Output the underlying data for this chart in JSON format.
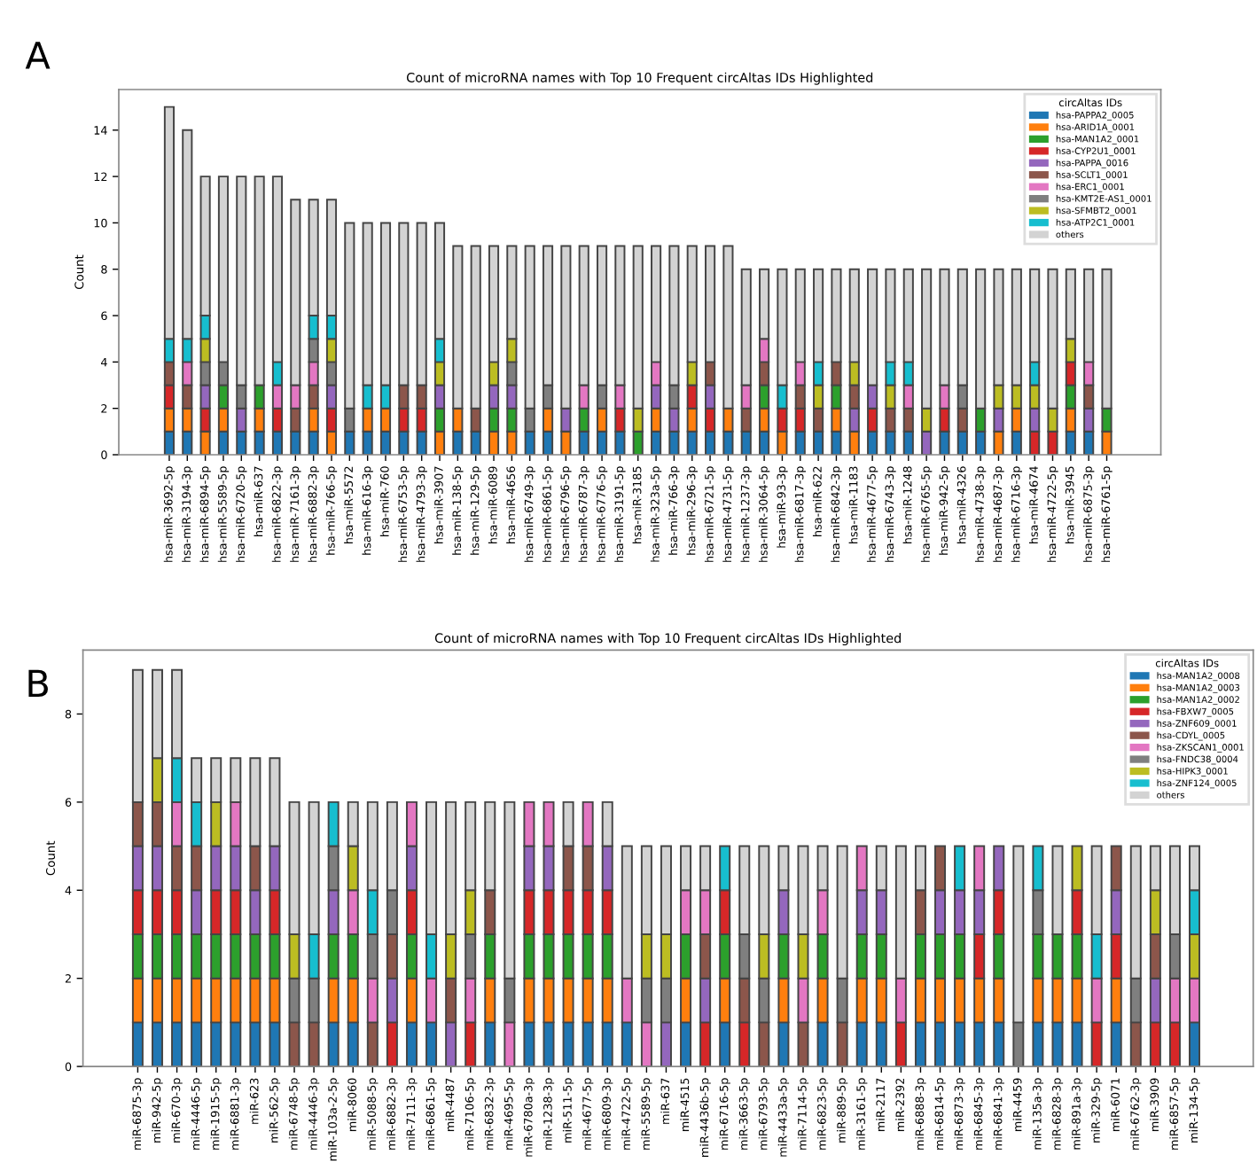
{
  "chart_data": [
    {
      "type": "bar",
      "stacked": true,
      "title": "Count of microRNA names with Top 10 Frequent circAltas IDs Highlighted",
      "ylabel": "Count",
      "legend_title": "circAltas IDs",
      "legend": "top right",
      "annotations": [
        "A"
      ],
      "categories": [
        "hsa-miR-3692-5p",
        "hsa-miR-3194-3p",
        "hsa-miR-6894-5p",
        "hsa-miR-5589-5p",
        "hsa-miR-6720-5p",
        "hsa-miR-637",
        "hsa-miR-6822-3p",
        "hsa-miR-7161-3p",
        "hsa-miR-6882-3p",
        "hsa-miR-766-5p",
        "hsa-miR-5572",
        "hsa-miR-616-3p",
        "hsa-miR-760",
        "hsa-miR-6753-5p",
        "hsa-miR-4793-3p",
        "hsa-miR-3907",
        "hsa-miR-138-5p",
        "hsa-miR-129-5p",
        "hsa-miR-6089",
        "hsa-miR-4656",
        "hsa-miR-6749-3p",
        "hsa-miR-6861-5p",
        "hsa-miR-6796-5p",
        "hsa-miR-6787-3p",
        "hsa-miR-6776-5p",
        "hsa-miR-3191-5p",
        "hsa-miR-3185",
        "hsa-miR-323a-5p",
        "hsa-miR-766-3p",
        "hsa-miR-296-3p",
        "hsa-miR-6721-5p",
        "hsa-miR-4731-5p",
        "hsa-miR-1237-3p",
        "hsa-miR-3064-5p",
        "hsa-miR-93-3p",
        "hsa-miR-6817-3p",
        "hsa-miR-622",
        "hsa-miR-6842-3p",
        "hsa-miR-1183",
        "hsa-miR-4677-5p",
        "hsa-miR-6743-3p",
        "hsa-miR-1248",
        "hsa-miR-6765-5p",
        "hsa-miR-942-5p",
        "hsa-miR-4326",
        "hsa-miR-4738-3p",
        "hsa-miR-4687-3p",
        "hsa-miR-6716-3p",
        "hsa-miR-4674",
        "hsa-miR-4722-5p",
        "hsa-miR-3945",
        "hsa-miR-6875-3p",
        "hsa-miR-6761-5p"
      ],
      "series": [
        {
          "name": "hsa-PAPPA2_0005",
          "color": "#1f77b4",
          "values": [
            1,
            1,
            0,
            1,
            1,
            1,
            1,
            1,
            1,
            0,
            1,
            1,
            1,
            1,
            1,
            0,
            1,
            1,
            0,
            0,
            1,
            1,
            0,
            1,
            1,
            1,
            0,
            1,
            1,
            1,
            1,
            1,
            1,
            1,
            0,
            1,
            1,
            1,
            0,
            1,
            1,
            1,
            0,
            1,
            1,
            1,
            0,
            1,
            0,
            0,
            1,
            1,
            0
          ]
        },
        {
          "name": "hsa-ARID1A_0001",
          "color": "#ff7f0e",
          "values": [
            1,
            1,
            1,
            1,
            0,
            1,
            0,
            0,
            1,
            1,
            0,
            1,
            1,
            0,
            0,
            1,
            1,
            0,
            1,
            1,
            0,
            1,
            1,
            0,
            1,
            0,
            0,
            1,
            0,
            1,
            0,
            1,
            0,
            1,
            1,
            0,
            0,
            1,
            1,
            0,
            0,
            0,
            0,
            0,
            0,
            0,
            1,
            1,
            0,
            0,
            1,
            0,
            1
          ]
        },
        {
          "name": "hsa-MAN1A2_0001",
          "color": "#2ca02c",
          "values": [
            0,
            0,
            0,
            1,
            0,
            1,
            0,
            0,
            0,
            0,
            0,
            0,
            0,
            0,
            0,
            1,
            0,
            0,
            1,
            1,
            0,
            0,
            0,
            1,
            0,
            0,
            1,
            0,
            0,
            0,
            0,
            0,
            0,
            1,
            0,
            0,
            0,
            1,
            0,
            0,
            0,
            0,
            0,
            0,
            0,
            1,
            0,
            0,
            0,
            0,
            1,
            0,
            1
          ]
        },
        {
          "name": "hsa-CYP2U1_0001",
          "color": "#d62728",
          "values": [
            1,
            0,
            1,
            0,
            0,
            0,
            1,
            0,
            0,
            1,
            0,
            0,
            0,
            1,
            1,
            0,
            0,
            0,
            0,
            0,
            0,
            0,
            0,
            0,
            0,
            1,
            0,
            0,
            0,
            1,
            1,
            0,
            0,
            0,
            1,
            1,
            0,
            0,
            0,
            1,
            0,
            0,
            0,
            1,
            0,
            0,
            0,
            0,
            1,
            1,
            1,
            0,
            0
          ]
        },
        {
          "name": "hsa-PAPPA_0016",
          "color": "#9467bd",
          "values": [
            0,
            0,
            1,
            0,
            1,
            0,
            0,
            0,
            0,
            1,
            0,
            0,
            0,
            0,
            0,
            1,
            0,
            0,
            1,
            1,
            0,
            0,
            1,
            0,
            0,
            0,
            0,
            1,
            1,
            0,
            1,
            0,
            0,
            0,
            0,
            0,
            0,
            0,
            1,
            1,
            0,
            0,
            1,
            0,
            0,
            0,
            1,
            0,
            1,
            0,
            0,
            1,
            0
          ]
        },
        {
          "name": "hsa-SCLT1_0001",
          "color": "#8c564b",
          "values": [
            1,
            1,
            0,
            0,
            0,
            0,
            0,
            1,
            1,
            0,
            0,
            0,
            0,
            1,
            1,
            0,
            0,
            1,
            0,
            0,
            0,
            0,
            0,
            0,
            0,
            0,
            0,
            0,
            0,
            0,
            1,
            0,
            1,
            1,
            0,
            1,
            1,
            1,
            1,
            0,
            1,
            1,
            0,
            0,
            1,
            0,
            0,
            0,
            0,
            0,
            0,
            1,
            0
          ]
        },
        {
          "name": "hsa-ERC1_0001",
          "color": "#e377c2",
          "values": [
            0,
            1,
            0,
            0,
            0,
            0,
            1,
            1,
            1,
            0,
            0,
            0,
            0,
            0,
            0,
            0,
            0,
            0,
            0,
            0,
            0,
            0,
            0,
            1,
            0,
            1,
            0,
            1,
            0,
            0,
            0,
            0,
            1,
            1,
            0,
            1,
            0,
            0,
            0,
            0,
            0,
            1,
            0,
            1,
            0,
            0,
            0,
            0,
            0,
            0,
            0,
            1,
            0
          ]
        },
        {
          "name": "hsa-KMT2E-AS1_0001",
          "color": "#7f7f7f",
          "values": [
            0,
            0,
            1,
            1,
            1,
            0,
            0,
            0,
            1,
            1,
            1,
            0,
            0,
            0,
            0,
            0,
            0,
            0,
            0,
            1,
            1,
            1,
            0,
            0,
            1,
            0,
            0,
            0,
            1,
            0,
            0,
            0,
            0,
            0,
            0,
            0,
            0,
            0,
            0,
            0,
            0,
            0,
            0,
            0,
            1,
            0,
            0,
            0,
            0,
            0,
            0,
            0,
            0
          ]
        },
        {
          "name": "hsa-SFMBT2_0001",
          "color": "#bcbd22",
          "values": [
            0,
            0,
            1,
            0,
            0,
            0,
            0,
            0,
            0,
            1,
            0,
            0,
            0,
            0,
            0,
            1,
            0,
            0,
            1,
            1,
            0,
            0,
            0,
            0,
            0,
            0,
            1,
            0,
            0,
            1,
            0,
            0,
            0,
            0,
            0,
            0,
            1,
            0,
            1,
            0,
            1,
            0,
            1,
            0,
            0,
            0,
            1,
            1,
            1,
            1,
            1,
            0,
            0
          ]
        },
        {
          "name": "hsa-ATP2C1_0001",
          "color": "#17becf",
          "values": [
            1,
            1,
            1,
            0,
            0,
            0,
            1,
            0,
            1,
            1,
            0,
            1,
            1,
            0,
            0,
            1,
            0,
            0,
            0,
            0,
            0,
            0,
            0,
            0,
            0,
            0,
            0,
            0,
            0,
            0,
            0,
            0,
            0,
            0,
            1,
            0,
            1,
            0,
            0,
            0,
            1,
            1,
            0,
            0,
            0,
            0,
            0,
            0,
            1,
            0,
            0,
            0,
            0
          ]
        },
        {
          "name": "others",
          "color": "#d3d3d3",
          "values": [
            10,
            9,
            6,
            8,
            9,
            9,
            8,
            8,
            5,
            5,
            8,
            7,
            7,
            7,
            7,
            5,
            7,
            7,
            5,
            4,
            7,
            6,
            7,
            6,
            6,
            6,
            7,
            5,
            6,
            5,
            5,
            7,
            5,
            3,
            5,
            4,
            4,
            4,
            4,
            5,
            4,
            4,
            6,
            5,
            5,
            6,
            5,
            5,
            4,
            6,
            3,
            4,
            6
          ]
        }
      ],
      "ylim": [
        0,
        15.75
      ],
      "yticks": [
        0,
        2,
        4,
        6,
        8,
        10,
        12,
        14
      ]
    },
    {
      "type": "bar",
      "stacked": true,
      "title": "Count of microRNA names with Top 10 Frequent circAltas IDs Highlighted",
      "ylabel": "Count",
      "legend_title": "circAltas IDs",
      "legend": "top right",
      "annotations": [
        "B"
      ],
      "categories": [
        "miR-6875-3p",
        "miR-942-5p",
        "miR-670-3p",
        "miR-4446-5p",
        "miR-1915-5p",
        "miR-6881-3p",
        "miR-623",
        "miR-562-5p",
        "miR-6748-5p",
        "miR-4446-3p",
        "miR-103a-2-5p",
        "miR-8060",
        "miR-5088-5p",
        "miR-6882-3p",
        "miR-7111-3p",
        "miR-6861-5p",
        "miR-4487",
        "miR-7106-5p",
        "miR-6832-3p",
        "miR-4695-5p",
        "miR-6780a-3p",
        "miR-1238-3p",
        "miR-511-5p",
        "miR-4677-5p",
        "miR-6809-3p",
        "miR-4722-5p",
        "miR-5589-5p",
        "miR-637",
        "miR-4515",
        "miR-4436b-5p",
        "miR-6716-5p",
        "miR-3663-5p",
        "miR-6793-5p",
        "miR-4433a-5p",
        "miR-7114-5p",
        "miR-6823-5p",
        "miR-889-5p",
        "miR-3161-5p",
        "miR-2117",
        "miR-2392",
        "miR-6888-3p",
        "miR-6814-5p",
        "miR-6873-3p",
        "miR-6845-3p",
        "miR-6841-3p",
        "miR-4459",
        "miR-135a-3p",
        "miR-6828-3p",
        "miR-891a-3p",
        "miR-329-5p",
        "miR-6071",
        "miR-6762-3p",
        "miR-3909",
        "miR-6857-5p",
        "miR-134-5p"
      ],
      "series": [
        {
          "name": "hsa-MAN1A2_0008",
          "color": "#1f77b4",
          "values": [
            1,
            1,
            1,
            1,
            1,
            1,
            1,
            1,
            0,
            0,
            1,
            1,
            0,
            0,
            1,
            1,
            0,
            0,
            1,
            0,
            1,
            1,
            1,
            1,
            1,
            1,
            0,
            0,
            1,
            0,
            1,
            0,
            0,
            1,
            0,
            1,
            0,
            1,
            1,
            0,
            1,
            1,
            1,
            1,
            1,
            0,
            1,
            1,
            1,
            0,
            1,
            0,
            0,
            0,
            1
          ]
        },
        {
          "name": "hsa-MAN1A2_0003",
          "color": "#ff7f0e",
          "values": [
            1,
            1,
            1,
            1,
            1,
            1,
            1,
            1,
            0,
            0,
            1,
            1,
            0,
            0,
            1,
            0,
            0,
            0,
            1,
            0,
            1,
            1,
            1,
            1,
            1,
            0,
            0,
            0,
            1,
            0,
            1,
            0,
            0,
            1,
            0,
            1,
            0,
            1,
            1,
            0,
            1,
            1,
            1,
            1,
            1,
            0,
            1,
            1,
            1,
            0,
            1,
            0,
            0,
            0,
            0
          ]
        },
        {
          "name": "hsa-MAN1A2_0002",
          "color": "#2ca02c",
          "values": [
            1,
            1,
            1,
            1,
            1,
            1,
            1,
            1,
            0,
            0,
            1,
            1,
            0,
            0,
            1,
            0,
            0,
            0,
            1,
            0,
            1,
            1,
            1,
            1,
            1,
            0,
            0,
            0,
            1,
            0,
            1,
            0,
            0,
            1,
            0,
            1,
            0,
            1,
            1,
            0,
            1,
            1,
            1,
            0,
            1,
            0,
            1,
            1,
            1,
            0,
            0,
            0,
            0,
            0,
            0
          ]
        },
        {
          "name": "hsa-FBXW7_0005",
          "color": "#d62728",
          "values": [
            1,
            1,
            1,
            0,
            1,
            1,
            0,
            1,
            0,
            0,
            0,
            0,
            0,
            1,
            1,
            0,
            0,
            1,
            0,
            0,
            1,
            1,
            1,
            1,
            1,
            0,
            0,
            0,
            0,
            1,
            1,
            1,
            0,
            0,
            0,
            0,
            0,
            0,
            0,
            1,
            0,
            0,
            0,
            1,
            1,
            0,
            0,
            0,
            1,
            1,
            1,
            0,
            1,
            1,
            0
          ]
        },
        {
          "name": "hsa-ZNF609_0001",
          "color": "#9467bd",
          "values": [
            1,
            1,
            0,
            1,
            1,
            1,
            1,
            1,
            0,
            0,
            1,
            0,
            0,
            1,
            1,
            0,
            1,
            0,
            0,
            0,
            1,
            1,
            0,
            0,
            1,
            0,
            0,
            1,
            0,
            1,
            0,
            0,
            0,
            1,
            0,
            0,
            0,
            1,
            1,
            0,
            0,
            1,
            1,
            1,
            1,
            0,
            0,
            0,
            0,
            0,
            1,
            0,
            1,
            0,
            0
          ]
        },
        {
          "name": "hsa-CDYL_0005",
          "color": "#8c564b",
          "values": [
            1,
            1,
            1,
            1,
            0,
            0,
            1,
            0,
            1,
            1,
            0,
            0,
            1,
            1,
            0,
            0,
            1,
            0,
            1,
            0,
            0,
            0,
            1,
            1,
            0,
            0,
            0,
            0,
            0,
            1,
            0,
            1,
            1,
            0,
            1,
            0,
            1,
            0,
            0,
            0,
            1,
            1,
            0,
            0,
            0,
            0,
            0,
            0,
            0,
            0,
            1,
            1,
            1,
            0,
            0
          ]
        },
        {
          "name": "hsa-ZKSCAN1_0001",
          "color": "#e377c2",
          "values": [
            0,
            0,
            1,
            0,
            0,
            1,
            0,
            0,
            0,
            0,
            0,
            1,
            1,
            0,
            1,
            1,
            0,
            1,
            0,
            1,
            1,
            1,
            0,
            1,
            0,
            1,
            1,
            0,
            1,
            1,
            0,
            0,
            0,
            0,
            1,
            1,
            0,
            1,
            0,
            1,
            0,
            0,
            0,
            1,
            0,
            0,
            0,
            0,
            0,
            1,
            0,
            0,
            0,
            1,
            1
          ]
        },
        {
          "name": "hsa-FNDC38_0004",
          "color": "#7f7f7f",
          "values": [
            0,
            0,
            0,
            0,
            0,
            0,
            0,
            0,
            1,
            1,
            1,
            0,
            1,
            1,
            0,
            0,
            0,
            1,
            0,
            1,
            0,
            0,
            0,
            0,
            0,
            0,
            1,
            1,
            0,
            0,
            0,
            1,
            1,
            0,
            0,
            0,
            1,
            0,
            0,
            0,
            0,
            0,
            0,
            0,
            0,
            1,
            1,
            0,
            0,
            0,
            0,
            1,
            0,
            1,
            0
          ]
        },
        {
          "name": "hsa-HIPK3_0001",
          "color": "#bcbd22",
          "values": [
            0,
            1,
            0,
            0,
            1,
            0,
            0,
            0,
            1,
            0,
            0,
            1,
            0,
            0,
            0,
            0,
            1,
            1,
            0,
            0,
            0,
            0,
            0,
            0,
            0,
            0,
            1,
            1,
            0,
            0,
            0,
            0,
            1,
            0,
            1,
            0,
            0,
            0,
            0,
            0,
            0,
            0,
            0,
            0,
            0,
            0,
            0,
            0,
            1,
            0,
            0,
            0,
            1,
            0,
            1
          ]
        },
        {
          "name": "hsa-ZNF124_0005",
          "color": "#17becf",
          "values": [
            0,
            0,
            1,
            1,
            0,
            0,
            0,
            0,
            0,
            1,
            1,
            0,
            1,
            0,
            0,
            1,
            0,
            0,
            0,
            0,
            0,
            0,
            0,
            0,
            0,
            0,
            0,
            0,
            0,
            0,
            1,
            0,
            0,
            0,
            0,
            0,
            0,
            0,
            0,
            0,
            0,
            0,
            1,
            0,
            0,
            0,
            1,
            0,
            0,
            1,
            0,
            0,
            0,
            0,
            1
          ]
        },
        {
          "name": "others",
          "color": "#d3d3d3",
          "values": [
            3,
            2,
            2,
            1,
            1,
            1,
            2,
            2,
            3,
            3,
            0,
            1,
            2,
            2,
            0,
            3,
            3,
            2,
            2,
            4,
            0,
            0,
            1,
            0,
            1,
            3,
            2,
            2,
            1,
            1,
            0,
            2,
            2,
            1,
            2,
            1,
            3,
            0,
            1,
            3,
            1,
            0,
            0,
            0,
            0,
            4,
            0,
            2,
            0,
            2,
            0,
            3,
            1,
            2,
            1
          ]
        }
      ],
      "ylim": [
        0,
        9.45
      ],
      "yticks": [
        0,
        2,
        4,
        6,
        8
      ]
    }
  ]
}
